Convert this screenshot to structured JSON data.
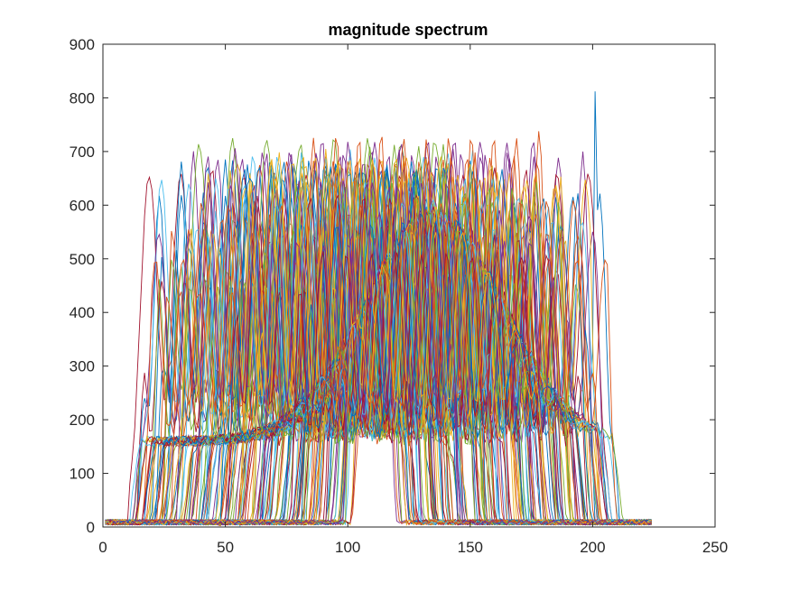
{
  "chart_data": {
    "type": "line",
    "title": "magnitude spectrum",
    "xlabel": "",
    "ylabel": "",
    "xlim": [
      0,
      250
    ],
    "ylim": [
      0,
      900
    ],
    "x_ticks": [
      0,
      50,
      100,
      150,
      200,
      250
    ],
    "y_ticks": [
      0,
      100,
      200,
      300,
      400,
      500,
      600,
      700,
      800,
      900
    ],
    "x_tick_labels": [
      "0",
      "50",
      "100",
      "150",
      "200",
      "250"
    ],
    "y_tick_labels": [
      "0",
      "100",
      "200",
      "300",
      "400",
      "500",
      "600",
      "700",
      "800",
      "900"
    ],
    "grid": false,
    "legend": "none",
    "x_range": [
      1,
      224
    ],
    "series_count": 200,
    "palette": [
      "#0072BD",
      "#D95319",
      "#EDB120",
      "#7E2F8E",
      "#77AC30",
      "#4DBEEE",
      "#A2142F"
    ],
    "envelope": {
      "description": "Dense overlapping spectra: a main band of peaks approx 600-800 spanning x≈12-205, with a central hump near 400 around x≈130, falling to near 0 beyond x≈210",
      "peak_max": 812,
      "peak_max_x": 201,
      "edge_left_x": 12,
      "edge_right_x": 210,
      "center_hump": {
        "x": 135,
        "y": 430
      }
    }
  }
}
